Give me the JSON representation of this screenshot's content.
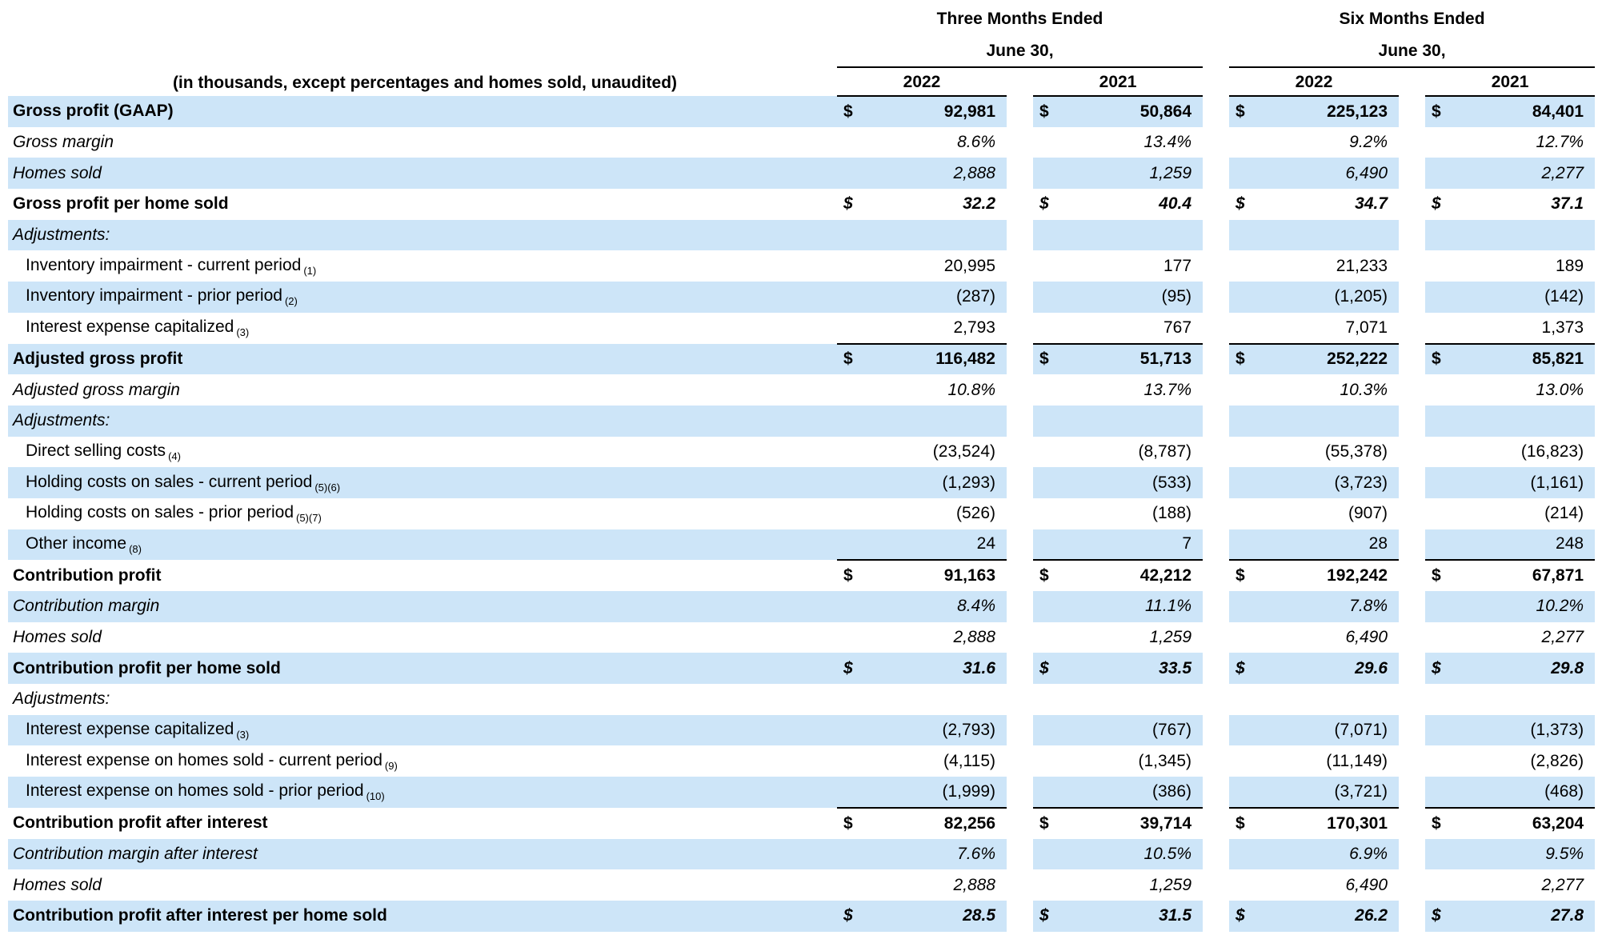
{
  "table": {
    "currency_symbol": "$",
    "colors": {
      "band": "#cde5f8",
      "rule": "#000000",
      "text": "#000000"
    },
    "header": {
      "note": "(in thousands, except percentages and homes sold, unaudited)",
      "groups": [
        {
          "title": "Three Months Ended",
          "date": "June 30,",
          "years": [
            "2022",
            "2021"
          ]
        },
        {
          "title": "Six Months Ended",
          "date": "June 30,",
          "years": [
            "2022",
            "2021"
          ]
        }
      ]
    },
    "rows": [
      {
        "label": "Gross profit (GAAP)",
        "style": "bold",
        "dollar": true,
        "values": [
          "92,981",
          "50,864",
          "225,123",
          "84,401"
        ]
      },
      {
        "label": "Gross margin",
        "style": "italic",
        "values": [
          "8.6%",
          "13.4%",
          "9.2%",
          "12.7%"
        ]
      },
      {
        "label": "Homes sold",
        "style": "italic",
        "values": [
          "2,888",
          "1,259",
          "6,490",
          "2,277"
        ]
      },
      {
        "label": "Gross profit per home sold",
        "style": "bold",
        "value_style": "bold-italic",
        "dollar": true,
        "values": [
          "32.2",
          "40.4",
          "34.7",
          "37.1"
        ]
      },
      {
        "label": "Adjustments:",
        "style": "italic",
        "values": [
          "",
          "",
          "",
          ""
        ]
      },
      {
        "label": "Inventory impairment - current period",
        "footnote": "(1)",
        "indent": true,
        "values": [
          "20,995",
          "177",
          "21,233",
          "189"
        ]
      },
      {
        "label": "Inventory impairment - prior period",
        "footnote": "(2)",
        "indent": true,
        "values": [
          "(287)",
          "(95)",
          "(1,205)",
          "(142)"
        ]
      },
      {
        "label": "Interest expense capitalized",
        "footnote": "(3)",
        "indent": true,
        "underline": true,
        "values": [
          "2,793",
          "767",
          "7,071",
          "1,373"
        ]
      },
      {
        "label": "Adjusted gross profit",
        "style": "bold",
        "dollar": true,
        "values": [
          "116,482",
          "51,713",
          "252,222",
          "85,821"
        ]
      },
      {
        "label": "Adjusted gross margin",
        "style": "italic",
        "values": [
          "10.8%",
          "13.7%",
          "10.3%",
          "13.0%"
        ]
      },
      {
        "label": "Adjustments:",
        "style": "italic",
        "values": [
          "",
          "",
          "",
          ""
        ]
      },
      {
        "label": "Direct selling costs",
        "footnote": "(4)",
        "indent": true,
        "values": [
          "(23,524)",
          "(8,787)",
          "(55,378)",
          "(16,823)"
        ]
      },
      {
        "label": "Holding costs on sales - current period",
        "footnote": "(5)(6)",
        "indent": true,
        "values": [
          "(1,293)",
          "(533)",
          "(3,723)",
          "(1,161)"
        ]
      },
      {
        "label": "Holding costs on sales - prior period",
        "footnote": "(5)(7)",
        "indent": true,
        "values": [
          "(526)",
          "(188)",
          "(907)",
          "(214)"
        ]
      },
      {
        "label": "Other income",
        "footnote": "(8)",
        "indent": true,
        "underline": true,
        "values": [
          "24",
          "7",
          "28",
          "248"
        ]
      },
      {
        "label": "Contribution profit",
        "style": "bold",
        "dollar": true,
        "values": [
          "91,163",
          "42,212",
          "192,242",
          "67,871"
        ]
      },
      {
        "label": "Contribution margin",
        "style": "italic",
        "values": [
          "8.4%",
          "11.1%",
          "7.8%",
          "10.2%"
        ]
      },
      {
        "label": "Homes sold",
        "style": "italic",
        "values": [
          "2,888",
          "1,259",
          "6,490",
          "2,277"
        ]
      },
      {
        "label": "Contribution profit per home sold",
        "style": "bold",
        "value_style": "bold-italic",
        "dollar": true,
        "values": [
          "31.6",
          "33.5",
          "29.6",
          "29.8"
        ]
      },
      {
        "label": "Adjustments:",
        "style": "italic",
        "values": [
          "",
          "",
          "",
          ""
        ]
      },
      {
        "label": "Interest expense capitalized",
        "footnote": "(3)",
        "indent": true,
        "values": [
          "(2,793)",
          "(767)",
          "(7,071)",
          "(1,373)"
        ]
      },
      {
        "label": "Interest expense on homes sold - current period",
        "footnote": "(9)",
        "indent": true,
        "values": [
          "(4,115)",
          "(1,345)",
          "(11,149)",
          "(2,826)"
        ]
      },
      {
        "label": "Interest expense on homes sold - prior period",
        "footnote": "(10)",
        "indent": true,
        "underline": true,
        "values": [
          "(1,999)",
          "(386)",
          "(3,721)",
          "(468)"
        ]
      },
      {
        "label": "Contribution profit after interest",
        "style": "bold",
        "dollar": true,
        "values": [
          "82,256",
          "39,714",
          "170,301",
          "63,204"
        ]
      },
      {
        "label": "Contribution margin after interest",
        "style": "italic",
        "values": [
          "7.6%",
          "10.5%",
          "6.9%",
          "9.5%"
        ]
      },
      {
        "label": "Homes sold",
        "style": "italic",
        "values": [
          "2,888",
          "1,259",
          "6,490",
          "2,277"
        ]
      },
      {
        "label": "Contribution profit after interest per home sold",
        "style": "bold",
        "value_style": "bold-italic",
        "dollar": true,
        "values": [
          "28.5",
          "31.5",
          "26.2",
          "27.8"
        ]
      }
    ]
  }
}
